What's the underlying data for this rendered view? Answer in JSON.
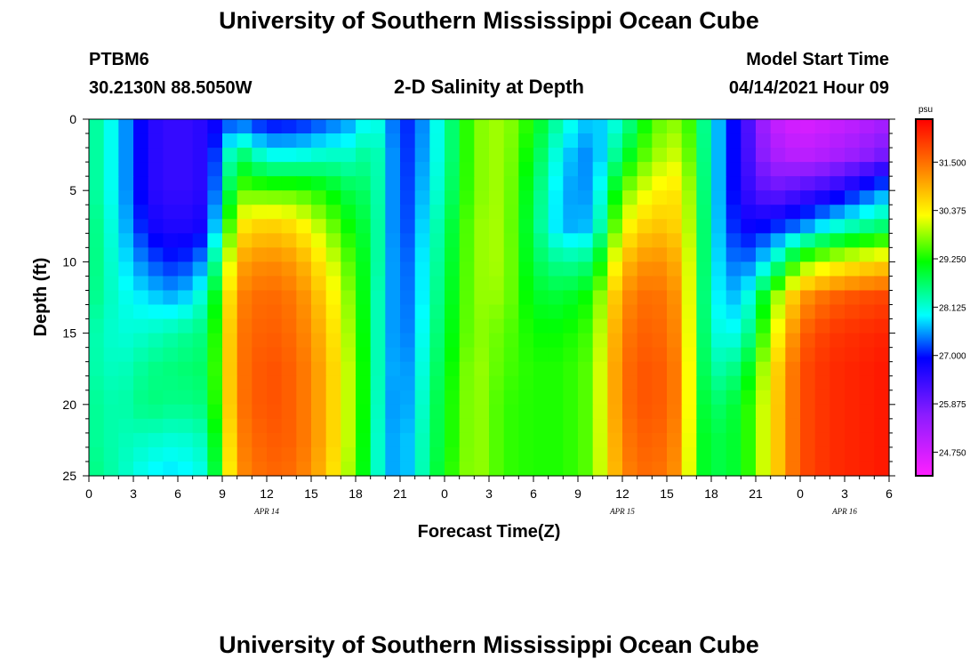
{
  "header": {
    "title": "University of Southern Mississippi Ocean Cube",
    "station": "PTBM6",
    "coords": "30.2130N  88.5050W",
    "subtitle": "2-D Salinity at Depth",
    "model_label": "Model Start Time",
    "model_time": "04/14/2021 Hour 09"
  },
  "footer": {
    "title": "University of Southern Mississippi Ocean Cube"
  },
  "chart_data": {
    "type": "heatmap",
    "title": "2-D Salinity at Depth",
    "xlabel": "Forecast Time(Z)",
    "ylabel": "Depth (ft)",
    "x_range_hours": [
      0,
      54
    ],
    "y_range": [
      0,
      25
    ],
    "y_inverted": true,
    "x_ticks": [
      {
        "h": 0,
        "label": "0"
      },
      {
        "h": 3,
        "label": "3"
      },
      {
        "h": 6,
        "label": "6"
      },
      {
        "h": 9,
        "label": "9"
      },
      {
        "h": 12,
        "label": "12"
      },
      {
        "h": 15,
        "label": "15"
      },
      {
        "h": 18,
        "label": "18"
      },
      {
        "h": 21,
        "label": "21"
      },
      {
        "h": 24,
        "label": "0"
      },
      {
        "h": 27,
        "label": "3"
      },
      {
        "h": 30,
        "label": "6"
      },
      {
        "h": 33,
        "label": "9"
      },
      {
        "h": 36,
        "label": "12"
      },
      {
        "h": 39,
        "label": "15"
      },
      {
        "h": 42,
        "label": "18"
      },
      {
        "h": 45,
        "label": "21"
      },
      {
        "h": 48,
        "label": "0"
      },
      {
        "h": 51,
        "label": "3"
      },
      {
        "h": 54,
        "label": "6"
      }
    ],
    "y_ticks": [
      0,
      5,
      10,
      15,
      20,
      25
    ],
    "date_labels": [
      {
        "h": 12,
        "label": "APR 14"
      },
      {
        "h": 36,
        "label": "APR 15"
      },
      {
        "h": 51,
        "label": "APR 16"
      }
    ],
    "colorbar": {
      "unit": "psu",
      "range": [
        24.2,
        32.5
      ],
      "ticks": [
        "31.500",
        "30.375",
        "29.250",
        "28.125",
        "27.000",
        "25.875",
        "24.750"
      ]
    },
    "x_hours": [
      0,
      2,
      4,
      6,
      8,
      10,
      12,
      14,
      16,
      18,
      19,
      20,
      21,
      22,
      24,
      26,
      28,
      30,
      32,
      34,
      36,
      38,
      40,
      41,
      42,
      44,
      46,
      48,
      50,
      52,
      54
    ],
    "depths": [
      0,
      2.5,
      5,
      7.5,
      10,
      12.5,
      15,
      17.5,
      20,
      22.5,
      25
    ],
    "salinity_psu": [
      [
        28.6,
        27.8,
        26.6,
        26.4,
        26.6,
        27.3,
        26.8,
        26.9,
        27.2,
        27.6,
        28.2,
        27.8,
        27.0,
        27.2,
        28.3,
        29.7,
        29.9,
        29.2,
        28.2,
        27.6,
        28.2,
        29.5,
        29.8,
        29.0,
        28.0,
        26.6,
        25.0,
        24.6,
        24.8,
        25.0,
        25.3
      ],
      [
        28.6,
        27.8,
        26.6,
        26.4,
        26.6,
        28.8,
        28.0,
        28.0,
        28.2,
        28.2,
        28.6,
        28.0,
        27.0,
        27.3,
        28.3,
        29.7,
        29.9,
        29.0,
        27.8,
        27.4,
        28.8,
        29.8,
        30.1,
        29.1,
        28.0,
        26.6,
        25.3,
        25.0,
        25.2,
        25.5,
        25.9
      ],
      [
        28.6,
        27.8,
        26.6,
        26.4,
        26.6,
        29.6,
        29.5,
        29.5,
        29.2,
        28.7,
        28.7,
        28.0,
        27.0,
        27.4,
        28.4,
        29.7,
        29.9,
        28.8,
        27.6,
        27.5,
        29.6,
        30.3,
        30.5,
        29.2,
        28.0,
        26.6,
        25.9,
        26.2,
        26.5,
        27.0,
        27.6
      ],
      [
        28.7,
        27.9,
        26.8,
        26.6,
        26.8,
        30.4,
        30.7,
        30.5,
        29.8,
        29.0,
        28.8,
        28.0,
        27.0,
        27.5,
        28.6,
        29.8,
        29.9,
        28.7,
        27.6,
        27.7,
        30.2,
        30.8,
        30.6,
        29.3,
        28.0,
        26.8,
        27.0,
        27.4,
        28.0,
        28.4,
        28.7
      ],
      [
        28.7,
        28.0,
        27.3,
        27.0,
        27.6,
        31.0,
        31.3,
        31.1,
        30.3,
        29.3,
        28.8,
        28.0,
        27.1,
        27.6,
        28.7,
        29.8,
        29.9,
        28.8,
        28.4,
        28.6,
        30.8,
        31.3,
        30.9,
        29.3,
        28.0,
        27.2,
        28.0,
        29.6,
        30.1,
        30.4,
        30.6
      ],
      [
        28.6,
        28.1,
        27.8,
        27.6,
        28.3,
        31.3,
        31.6,
        31.4,
        30.6,
        29.5,
        28.7,
        27.9,
        27.2,
        27.6,
        28.8,
        29.8,
        29.8,
        29.0,
        28.9,
        29.3,
        31.2,
        31.6,
        31.1,
        29.2,
        28.0,
        27.6,
        29.5,
        31.1,
        31.6,
        31.8,
        31.9
      ],
      [
        28.4,
        28.1,
        28.2,
        28.4,
        28.6,
        31.4,
        31.7,
        31.5,
        30.8,
        29.6,
        28.7,
        27.9,
        27.2,
        27.7,
        28.9,
        29.8,
        29.6,
        29.2,
        29.2,
        29.5,
        31.4,
        31.7,
        31.2,
        29.2,
        28.1,
        28.0,
        29.9,
        31.6,
        32.0,
        32.1,
        32.2
      ],
      [
        28.4,
        28.2,
        28.5,
        28.6,
        28.7,
        31.4,
        31.8,
        31.6,
        30.9,
        29.7,
        28.7,
        27.9,
        27.3,
        27.8,
        29.0,
        29.9,
        29.5,
        29.3,
        29.3,
        29.6,
        31.5,
        31.8,
        31.3,
        29.2,
        28.3,
        28.6,
        30.3,
        31.8,
        32.1,
        32.2,
        32.3
      ],
      [
        28.5,
        28.3,
        28.6,
        28.5,
        28.6,
        31.4,
        31.8,
        31.6,
        30.9,
        29.7,
        28.7,
        27.8,
        27.3,
        27.9,
        29.1,
        29.9,
        29.4,
        29.3,
        29.3,
        29.6,
        31.5,
        31.8,
        31.3,
        29.2,
        28.6,
        29.0,
        30.4,
        31.8,
        32.1,
        32.2,
        32.3
      ],
      [
        28.5,
        28.3,
        28.2,
        28.1,
        28.3,
        31.3,
        31.7,
        31.6,
        30.9,
        29.7,
        28.6,
        27.8,
        27.4,
        28.0,
        29.1,
        29.9,
        29.4,
        29.3,
        29.3,
        29.6,
        31.4,
        31.7,
        31.2,
        29.2,
        28.8,
        29.0,
        30.4,
        31.8,
        32.1,
        32.2,
        32.3
      ],
      [
        28.6,
        28.3,
        27.9,
        27.8,
        28.1,
        31.2,
        31.6,
        31.5,
        30.8,
        29.6,
        28.6,
        27.8,
        27.4,
        28.0,
        29.2,
        29.9,
        29.4,
        29.3,
        29.3,
        29.6,
        31.3,
        31.6,
        31.1,
        29.2,
        28.8,
        29.0,
        30.4,
        31.8,
        32.1,
        32.2,
        32.3
      ]
    ]
  }
}
